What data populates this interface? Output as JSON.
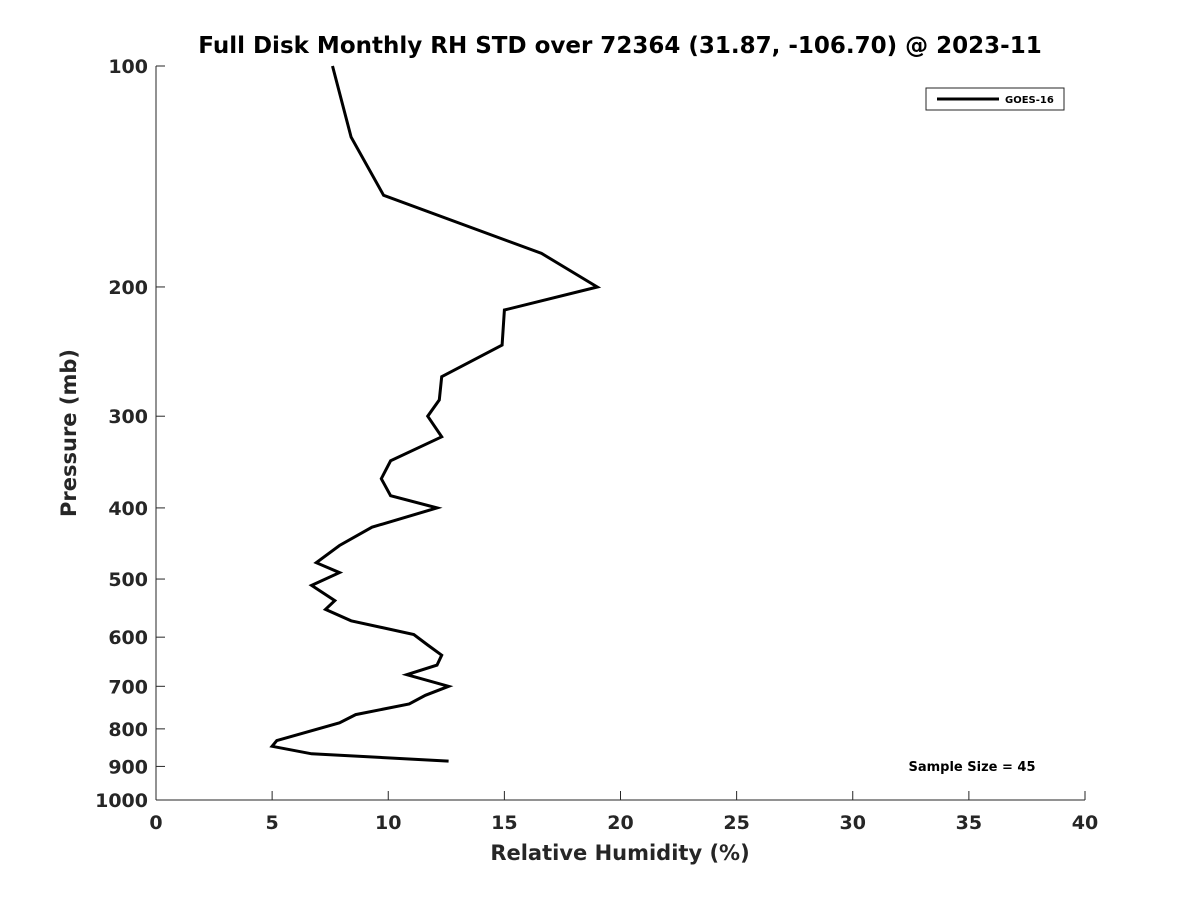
{
  "chart_data": {
    "type": "line",
    "title": "Full Disk Monthly RH STD over 72364 (31.87, -106.70) @ 2023-11",
    "xlabel": "Relative Humidity (%)",
    "ylabel": "Pressure (mb)",
    "xlim": [
      0,
      40
    ],
    "ylim": [
      100,
      1000
    ],
    "y_scale": "log",
    "y_reversed": true,
    "x_ticks": [
      0,
      5,
      10,
      15,
      20,
      25,
      30,
      35,
      40
    ],
    "y_ticks": [
      100,
      200,
      300,
      400,
      500,
      600,
      700,
      800,
      900,
      1000
    ],
    "grid": false,
    "legend_position": "top-right",
    "series": [
      {
        "name": "GOES-16",
        "color": "#000000",
        "points": [
          {
            "x": 7.6,
            "y": 100
          },
          {
            "x": 8.4,
            "y": 125
          },
          {
            "x": 9.8,
            "y": 150
          },
          {
            "x": 16.6,
            "y": 180
          },
          {
            "x": 19.0,
            "y": 200
          },
          {
            "x": 15.0,
            "y": 215
          },
          {
            "x": 14.9,
            "y": 240
          },
          {
            "x": 12.3,
            "y": 265
          },
          {
            "x": 12.2,
            "y": 285
          },
          {
            "x": 11.7,
            "y": 300
          },
          {
            "x": 12.3,
            "y": 320
          },
          {
            "x": 10.1,
            "y": 345
          },
          {
            "x": 9.7,
            "y": 365
          },
          {
            "x": 10.1,
            "y": 385
          },
          {
            "x": 12.1,
            "y": 400
          },
          {
            "x": 9.3,
            "y": 425
          },
          {
            "x": 7.9,
            "y": 450
          },
          {
            "x": 6.9,
            "y": 475
          },
          {
            "x": 7.9,
            "y": 490
          },
          {
            "x": 6.7,
            "y": 510
          },
          {
            "x": 7.7,
            "y": 535
          },
          {
            "x": 7.3,
            "y": 550
          },
          {
            "x": 8.4,
            "y": 570
          },
          {
            "x": 11.1,
            "y": 595
          },
          {
            "x": 11.7,
            "y": 615
          },
          {
            "x": 12.3,
            "y": 635
          },
          {
            "x": 12.1,
            "y": 655
          },
          {
            "x": 10.8,
            "y": 675
          },
          {
            "x": 12.6,
            "y": 700
          },
          {
            "x": 11.6,
            "y": 720
          },
          {
            "x": 10.9,
            "y": 740
          },
          {
            "x": 8.6,
            "y": 765
          },
          {
            "x": 7.9,
            "y": 785
          },
          {
            "x": 5.2,
            "y": 830
          },
          {
            "x": 5.0,
            "y": 845
          },
          {
            "x": 6.7,
            "y": 865
          },
          {
            "x": 12.6,
            "y": 885
          }
        ]
      }
    ],
    "annotation": "Sample Size = 45"
  }
}
